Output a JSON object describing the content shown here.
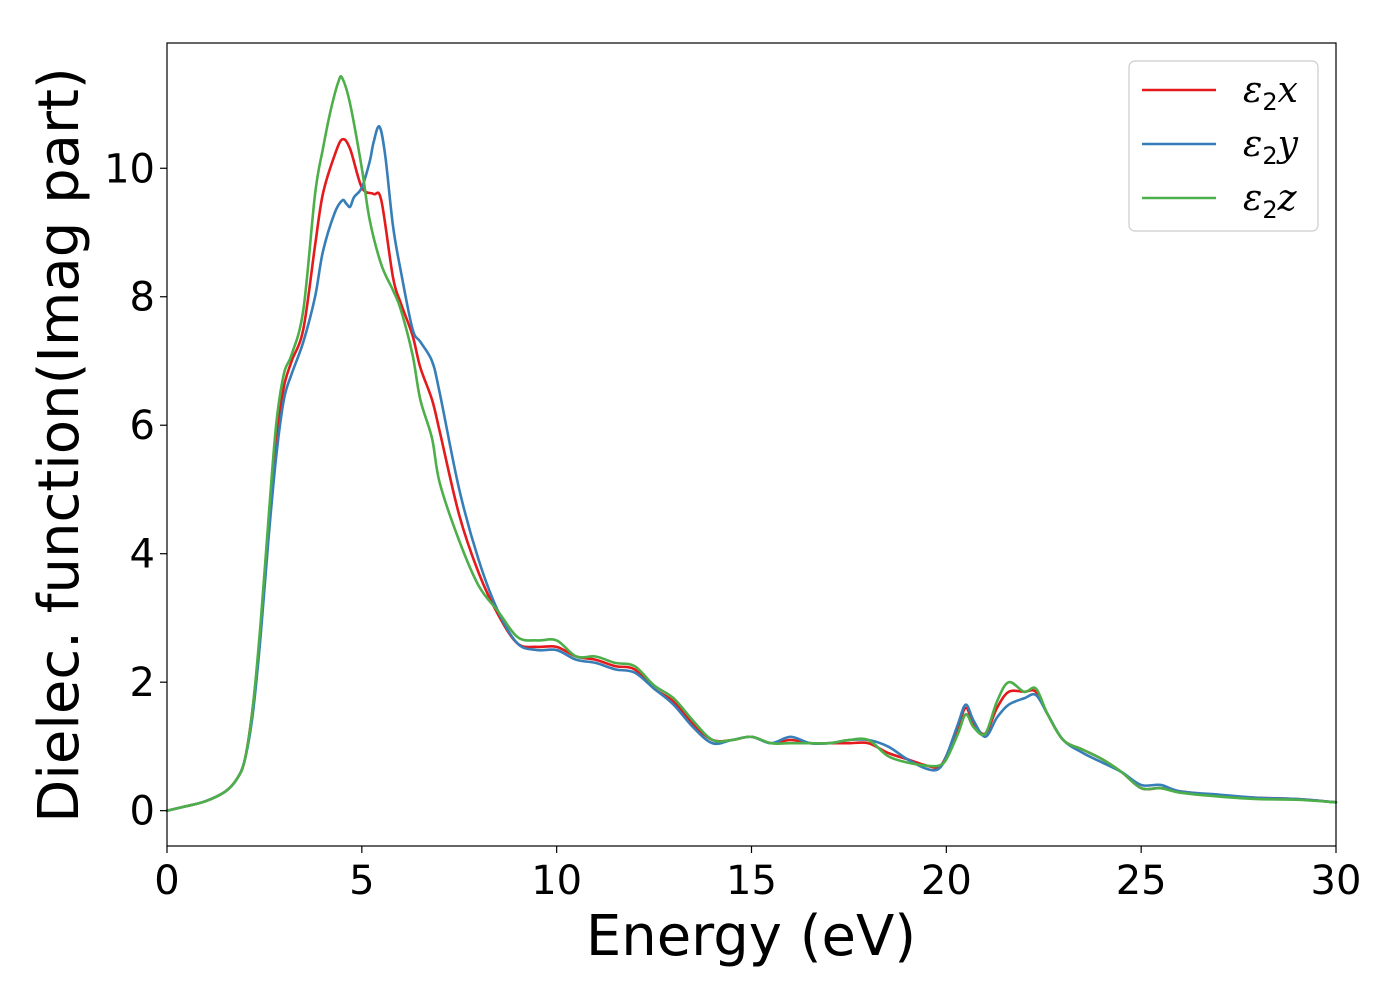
{
  "chart_data": {
    "type": "line",
    "title": "",
    "xlabel": "Energy (eV)",
    "ylabel": "Dielec. function(Imag part)",
    "xlim": [
      0,
      30
    ],
    "ylim": [
      -0.55,
      11.95
    ],
    "xticks": [
      "0",
      "5",
      "10",
      "15",
      "20",
      "25",
      "30"
    ],
    "yticks": [
      "0",
      "2",
      "4",
      "6",
      "8",
      "10"
    ],
    "grid": false,
    "legend_position": "top-right",
    "series": [
      {
        "name": "ε2x",
        "legend_base": "ε",
        "legend_sub": "2",
        "legend_var": "x",
        "color": "#e41a1c",
        "x": [
          0,
          0.5,
          1.0,
          1.5,
          1.8,
          2.0,
          2.2,
          2.4,
          2.6,
          2.8,
          3.0,
          3.2,
          3.5,
          3.8,
          4.0,
          4.3,
          4.5,
          4.7,
          5.0,
          5.3,
          5.5,
          5.8,
          6.0,
          6.3,
          6.5,
          6.8,
          7.0,
          7.5,
          8.0,
          8.5,
          9.0,
          9.5,
          10.0,
          10.5,
          11.0,
          11.5,
          12.0,
          12.5,
          13.0,
          13.5,
          14.0,
          14.5,
          15.0,
          15.5,
          16.0,
          16.5,
          17.0,
          17.5,
          18.0,
          18.5,
          19.0,
          19.5,
          19.8,
          20.0,
          20.3,
          20.5,
          20.7,
          21.0,
          21.3,
          21.6,
          22.0,
          22.3,
          22.6,
          23.0,
          23.5,
          24.0,
          24.5,
          25.0,
          25.5,
          26.0,
          27.0,
          28.0,
          29.0,
          30.0
        ],
        "y": [
          0,
          0.07,
          0.15,
          0.3,
          0.5,
          0.8,
          1.6,
          2.8,
          4.4,
          5.8,
          6.6,
          7.0,
          7.5,
          8.8,
          9.6,
          10.2,
          10.45,
          10.3,
          9.7,
          9.6,
          9.5,
          8.3,
          7.9,
          7.4,
          6.9,
          6.4,
          5.9,
          4.6,
          3.7,
          3.05,
          2.6,
          2.55,
          2.55,
          2.4,
          2.35,
          2.25,
          2.2,
          1.9,
          1.7,
          1.35,
          1.1,
          1.1,
          1.15,
          1.05,
          1.1,
          1.05,
          1.05,
          1.05,
          1.05,
          0.9,
          0.8,
          0.7,
          0.68,
          0.85,
          1.3,
          1.6,
          1.35,
          1.2,
          1.6,
          1.85,
          1.85,
          1.85,
          1.5,
          1.1,
          0.95,
          0.8,
          0.6,
          0.35,
          0.35,
          0.3,
          0.23,
          0.2,
          0.18,
          0.13
        ]
      },
      {
        "name": "ε2y",
        "legend_base": "ε",
        "legend_sub": "2",
        "legend_var": "y",
        "color": "#377eb8",
        "x": [
          0,
          0.5,
          1.0,
          1.5,
          1.8,
          2.0,
          2.2,
          2.4,
          2.6,
          2.8,
          3.0,
          3.2,
          3.5,
          3.8,
          4.0,
          4.3,
          4.5,
          4.6,
          4.7,
          4.8,
          5.0,
          5.2,
          5.3,
          5.45,
          5.6,
          5.8,
          6.0,
          6.3,
          6.5,
          6.8,
          7.0,
          7.5,
          8.0,
          8.5,
          9.0,
          9.5,
          10.0,
          10.5,
          11.0,
          11.5,
          12.0,
          12.5,
          13.0,
          13.5,
          14.0,
          14.5,
          15.0,
          15.5,
          16.0,
          16.5,
          17.0,
          17.5,
          18.0,
          18.5,
          19.0,
          19.5,
          19.8,
          20.0,
          20.3,
          20.5,
          20.7,
          21.0,
          21.3,
          21.6,
          22.0,
          22.3,
          22.6,
          23.0,
          23.5,
          24.0,
          24.5,
          25.0,
          25.5,
          26.0,
          27.0,
          28.0,
          29.0,
          30.0
        ],
        "y": [
          0,
          0.07,
          0.15,
          0.3,
          0.5,
          0.8,
          1.5,
          2.7,
          4.2,
          5.5,
          6.4,
          6.8,
          7.3,
          8.0,
          8.7,
          9.3,
          9.5,
          9.45,
          9.4,
          9.55,
          9.7,
          10.1,
          10.4,
          10.65,
          10.2,
          9.1,
          8.4,
          7.5,
          7.3,
          7.0,
          6.5,
          5.0,
          3.9,
          3.1,
          2.6,
          2.5,
          2.5,
          2.35,
          2.3,
          2.2,
          2.15,
          1.9,
          1.65,
          1.3,
          1.05,
          1.1,
          1.15,
          1.05,
          1.15,
          1.05,
          1.05,
          1.1,
          1.1,
          1.0,
          0.8,
          0.65,
          0.65,
          0.85,
          1.35,
          1.65,
          1.4,
          1.15,
          1.45,
          1.65,
          1.75,
          1.8,
          1.5,
          1.1,
          0.9,
          0.75,
          0.6,
          0.4,
          0.4,
          0.3,
          0.25,
          0.2,
          0.18,
          0.13
        ]
      },
      {
        "name": "ε2z",
        "legend_base": "ε",
        "legend_sub": "2",
        "legend_var": "z",
        "color": "#4daf4a",
        "x": [
          0,
          0.5,
          1.0,
          1.5,
          1.8,
          2.0,
          2.2,
          2.4,
          2.6,
          2.8,
          3.0,
          3.2,
          3.5,
          3.8,
          4.0,
          4.2,
          4.4,
          4.5,
          4.7,
          5.0,
          5.2,
          5.5,
          5.8,
          6.0,
          6.3,
          6.5,
          6.8,
          7.0,
          7.5,
          8.0,
          8.5,
          9.0,
          9.5,
          10.0,
          10.5,
          11.0,
          11.5,
          12.0,
          12.5,
          13.0,
          13.5,
          14.0,
          14.5,
          15.0,
          15.5,
          16.0,
          16.5,
          17.0,
          17.5,
          18.0,
          18.5,
          19.0,
          19.5,
          19.8,
          20.0,
          20.3,
          20.5,
          20.7,
          21.0,
          21.3,
          21.6,
          22.0,
          22.3,
          22.6,
          23.0,
          23.5,
          24.0,
          24.5,
          25.0,
          25.5,
          26.0,
          27.0,
          28.0,
          29.0,
          30.0
        ],
        "y": [
          0,
          0.07,
          0.15,
          0.3,
          0.5,
          0.8,
          1.6,
          2.9,
          4.5,
          6.0,
          6.8,
          7.1,
          7.8,
          9.6,
          10.3,
          10.9,
          11.35,
          11.4,
          11.0,
          10.0,
          9.2,
          8.5,
          8.1,
          7.8,
          7.1,
          6.4,
          5.8,
          5.1,
          4.2,
          3.5,
          3.1,
          2.7,
          2.65,
          2.65,
          2.4,
          2.4,
          2.3,
          2.25,
          1.95,
          1.75,
          1.4,
          1.1,
          1.1,
          1.15,
          1.05,
          1.05,
          1.05,
          1.05,
          1.1,
          1.1,
          0.85,
          0.75,
          0.7,
          0.7,
          0.8,
          1.2,
          1.5,
          1.3,
          1.2,
          1.7,
          2.0,
          1.85,
          1.9,
          1.5,
          1.1,
          0.95,
          0.8,
          0.6,
          0.35,
          0.35,
          0.28,
          0.22,
          0.18,
          0.17,
          0.13
        ]
      }
    ]
  }
}
